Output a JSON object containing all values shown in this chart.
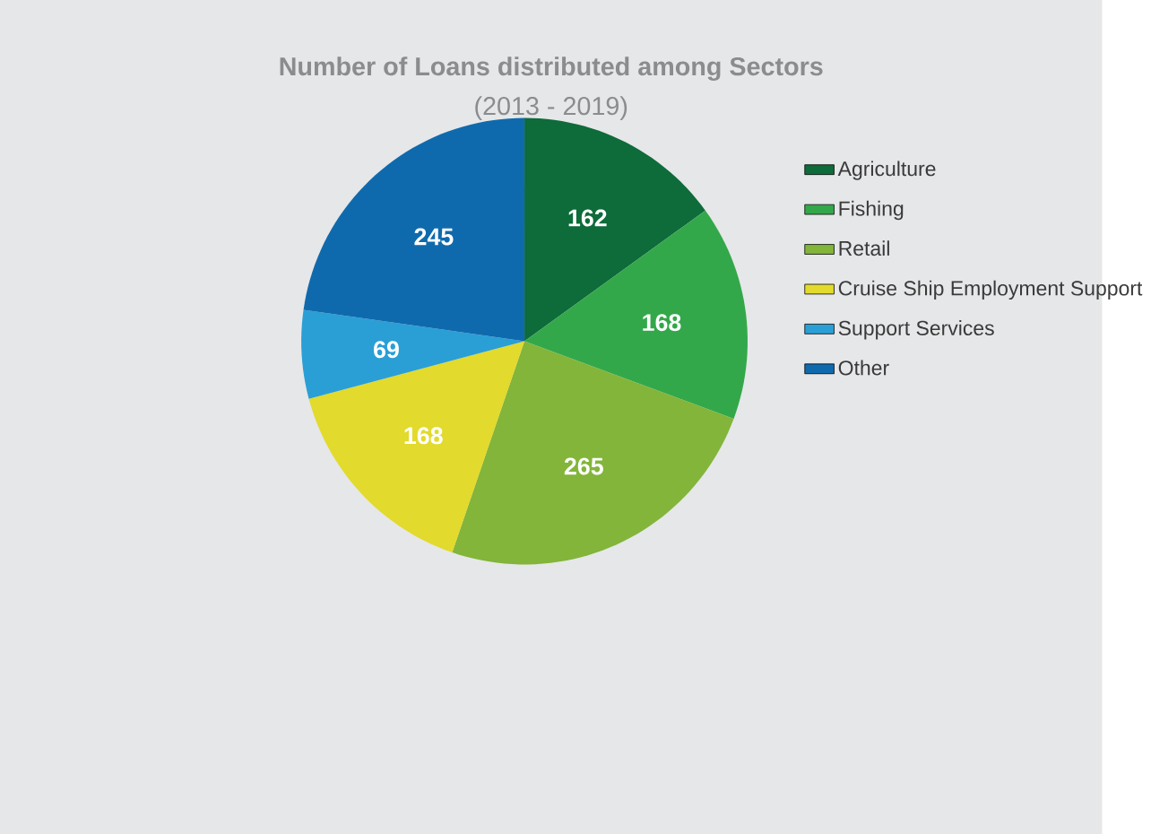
{
  "chart_data": {
    "type": "pie",
    "title": "Number of Loans distributed among Sectors",
    "subtitle": "(2013 - 2019)",
    "categories": [
      "Agriculture",
      "Fishing",
      "Retail",
      "Cruise Ship Employment Support",
      "Support Services",
      "Other"
    ],
    "values": [
      162,
      168,
      265,
      168,
      69,
      245
    ],
    "colors": [
      "#0e6b3a",
      "#33a84a",
      "#82b53a",
      "#e2da2c",
      "#2a9fd6",
      "#0f6aad"
    ],
    "data_labels": true,
    "legend": "right"
  }
}
